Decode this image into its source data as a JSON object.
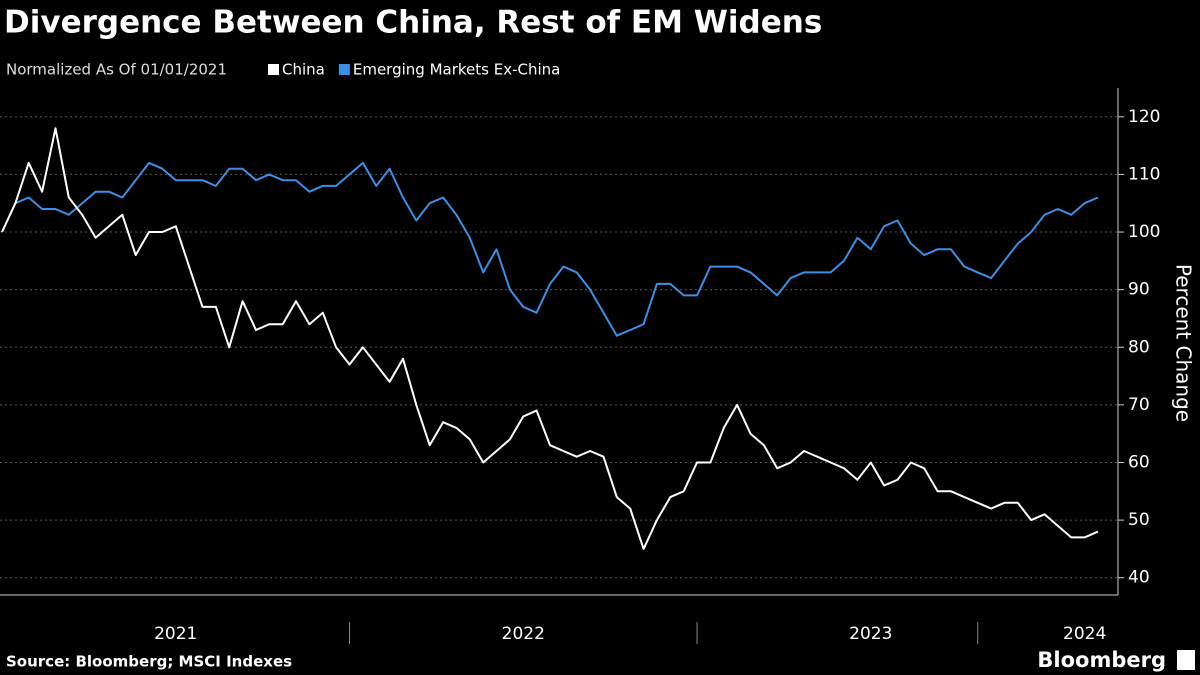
{
  "chart_data": {
    "type": "line",
    "title": "Divergence Between China, Rest of EM Widens",
    "subtitle": "Normalized As Of 01/01/2021",
    "y_label": "Percent Change",
    "source": "Source: Bloomberg; MSCI Indexes",
    "brand": "Bloomberg",
    "xlim": [
      0,
      82
    ],
    "xticks": [
      {
        "value": 13,
        "label": "2021"
      },
      {
        "value": 39,
        "label": "2022"
      },
      {
        "value": 65,
        "label": "2023"
      },
      {
        "value": 81,
        "label": "2024"
      }
    ],
    "ylim": [
      37,
      125
    ],
    "yticks": [
      40,
      50,
      60,
      70,
      80,
      90,
      100,
      110,
      120
    ],
    "grid": true,
    "series": [
      {
        "name": "China",
        "color": "#ffffff",
        "values": [
          100,
          105,
          112,
          107,
          118,
          106,
          103,
          99,
          101,
          103,
          96,
          100,
          100,
          101,
          94,
          87,
          87,
          80,
          88,
          83,
          84,
          84,
          88,
          84,
          86,
          80,
          77,
          80,
          77,
          74,
          78,
          70,
          63,
          67,
          66,
          64,
          60,
          62,
          64,
          68,
          69,
          63,
          62,
          61,
          62,
          61,
          54,
          52,
          45,
          50,
          54,
          55,
          60,
          60,
          66,
          70,
          65,
          63,
          59,
          60,
          62,
          61,
          60,
          59,
          57,
          60,
          56,
          57,
          60,
          59,
          55,
          55,
          54,
          53,
          52,
          53,
          53,
          50,
          51,
          49,
          47,
          47,
          48
        ]
      },
      {
        "name": "Emerging Markets Ex-China",
        "color": "#3b8fe6",
        "values": [
          100,
          105,
          106,
          104,
          104,
          103,
          105,
          107,
          107,
          106,
          109,
          112,
          111,
          109,
          109,
          109,
          108,
          111,
          111,
          109,
          110,
          109,
          109,
          107,
          108,
          108,
          110,
          112,
          108,
          111,
          106,
          102,
          105,
          106,
          103,
          99,
          93,
          97,
          90,
          87,
          86,
          91,
          94,
          93,
          90,
          86,
          82,
          83,
          84,
          91,
          91,
          89,
          89,
          94,
          94,
          94,
          93,
          91,
          89,
          92,
          93,
          93,
          93,
          95,
          99,
          97,
          101,
          102,
          98,
          96,
          97,
          97,
          94,
          93,
          92,
          95,
          98,
          100,
          103,
          104,
          103,
          105,
          106
        ]
      }
    ]
  }
}
